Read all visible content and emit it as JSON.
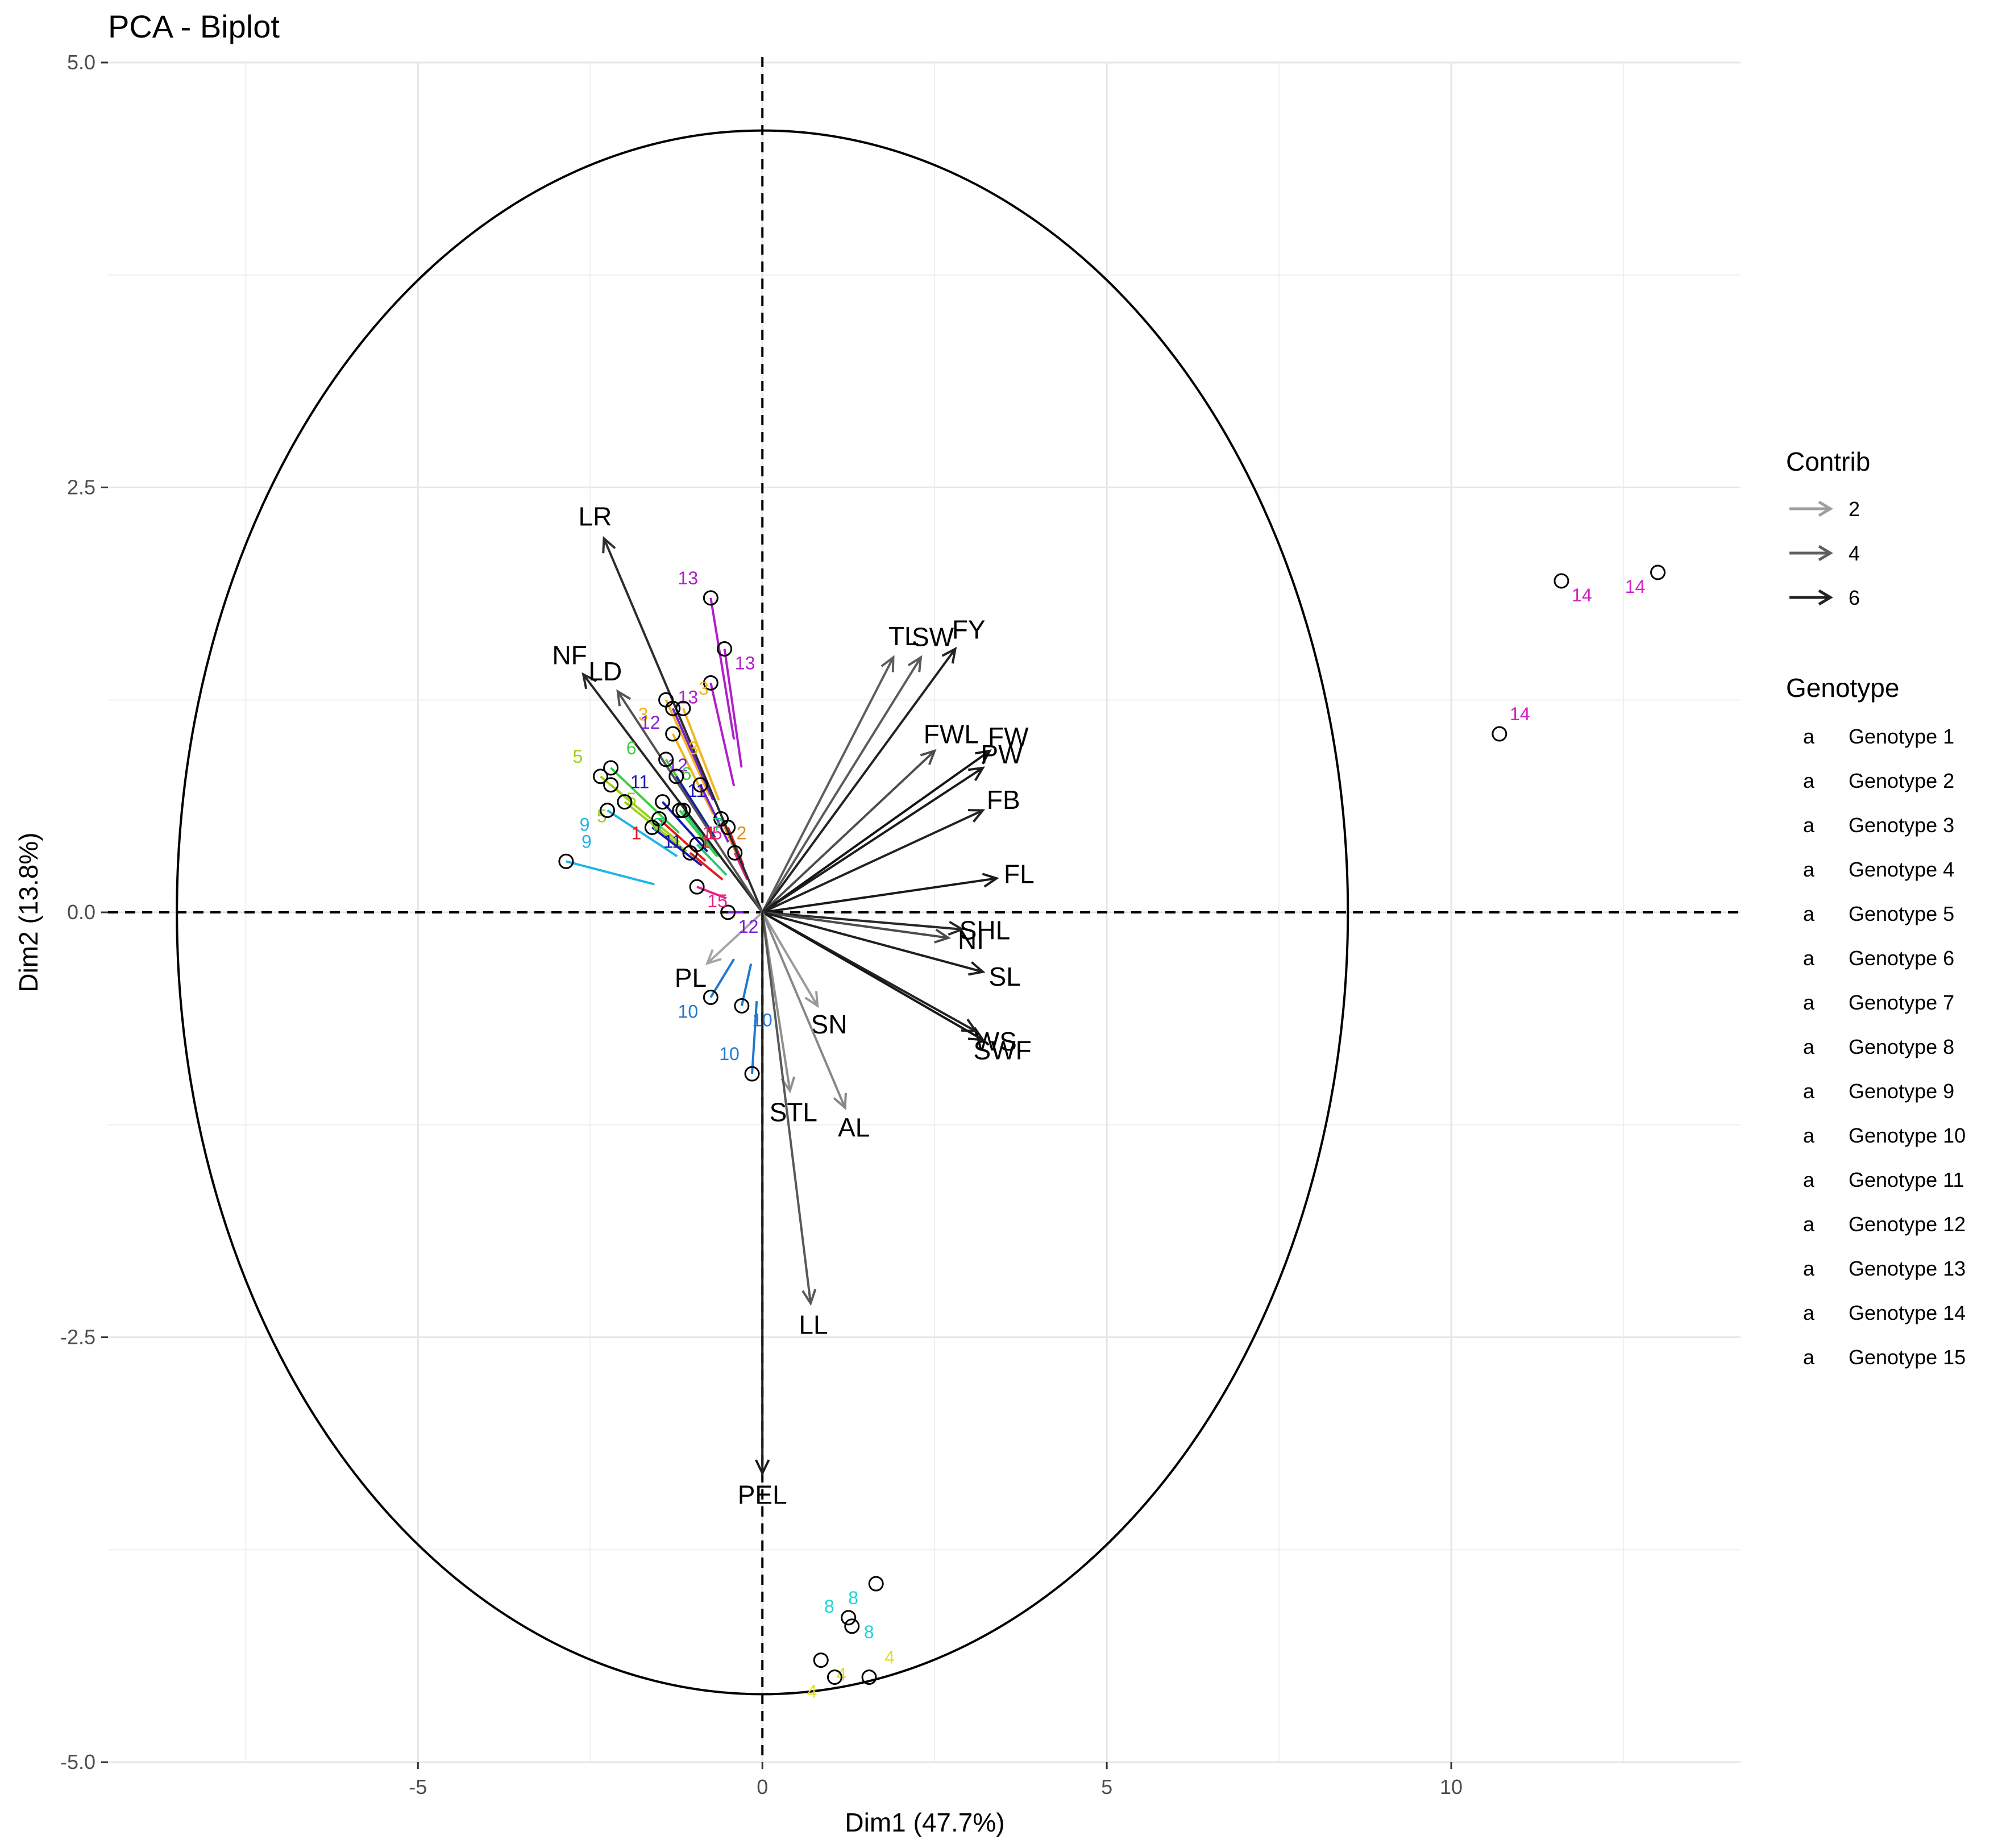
{
  "chart_data": {
    "type": "scatter",
    "subtype": "pca-biplot",
    "title": "PCA - Biplot",
    "xlabel": "Dim1 (47.7%)",
    "ylabel": "Dim2 (13.8%)",
    "xlim": [
      -9.5,
      14.2
    ],
    "ylim": [
      -5.0,
      5.0
    ],
    "x_ticks": [
      -5,
      0,
      5,
      10
    ],
    "x_tick_labels": [
      "-5",
      "0",
      "5",
      "10"
    ],
    "y_ticks": [
      -5.0,
      -2.5,
      0.0,
      2.5,
      5.0
    ],
    "y_tick_labels": [
      "-5.0",
      "-2.5",
      "0.0",
      "2.5",
      "5.0"
    ],
    "grid": true,
    "circle": {
      "cx": 0,
      "rx": 8.5,
      "ry": 4.6
    },
    "contrib_legend": {
      "title": "Contrib",
      "entries": [
        {
          "label": "2",
          "color": "#9e9e9e"
        },
        {
          "label": "4",
          "color": "#5f5f5f"
        },
        {
          "label": "6",
          "color": "#222222"
        }
      ]
    },
    "genotype_legend": {
      "title": "Genotype",
      "key_glyph": "a",
      "entries": [
        {
          "label": "Genotype 1",
          "color": "#e41a1c"
        },
        {
          "label": "Genotype 2",
          "color": "#e08a1e"
        },
        {
          "label": "Genotype 3",
          "color": "#f2b51c"
        },
        {
          "label": "Genotype 4",
          "color": "#e0e020"
        },
        {
          "label": "Genotype 5",
          "color": "#9ed11b"
        },
        {
          "label": "Genotype 6",
          "color": "#3ccf3c"
        },
        {
          "label": "Genotype 7",
          "color": "#20c97a"
        },
        {
          "label": "Genotype 8",
          "color": "#1ed4d4"
        },
        {
          "label": "Genotype 9",
          "color": "#1fb4e6"
        },
        {
          "label": "Genotype 10",
          "color": "#1f78d4"
        },
        {
          "label": "Genotype 11",
          "color": "#1a1ab0"
        },
        {
          "label": "Genotype 12",
          "color": "#7a1fd4"
        },
        {
          "label": "Genotype 13",
          "color": "#b01fc8"
        },
        {
          "label": "Genotype 14",
          "color": "#d41fc8"
        },
        {
          "label": "Genotype 15",
          "color": "#e8208a"
        }
      ]
    },
    "variables": [
      {
        "name": "LR",
        "x": -2.3,
        "y": 2.2,
        "contrib": 5.6
      },
      {
        "name": "NF",
        "x": -2.6,
        "y": 1.4,
        "contrib": 5.8
      },
      {
        "name": "LD",
        "x": -2.1,
        "y": 1.3,
        "contrib": 4.2
      },
      {
        "name": "TL",
        "x": 1.9,
        "y": 1.5,
        "contrib": 3.8
      },
      {
        "name": "SW",
        "x": 2.3,
        "y": 1.5,
        "contrib": 3.9
      },
      {
        "name": "FY",
        "x": 2.8,
        "y": 1.55,
        "contrib": 6.0
      },
      {
        "name": "FWL",
        "x": 2.5,
        "y": 0.95,
        "contrib": 4.4
      },
      {
        "name": "FW",
        "x": 3.3,
        "y": 0.95,
        "contrib": 6.5
      },
      {
        "name": "PW",
        "x": 3.2,
        "y": 0.85,
        "contrib": 6.2
      },
      {
        "name": "FB",
        "x": 3.2,
        "y": 0.6,
        "contrib": 6.0
      },
      {
        "name": "FL",
        "x": 3.4,
        "y": 0.2,
        "contrib": 6.3
      },
      {
        "name": "SHL",
        "x": 2.9,
        "y": -0.1,
        "contrib": 5.8
      },
      {
        "name": "NI",
        "x": 2.7,
        "y": -0.15,
        "contrib": 4.5
      },
      {
        "name": "SL",
        "x": 3.2,
        "y": -0.35,
        "contrib": 6.1
      },
      {
        "name": "WS",
        "x": 3.1,
        "y": -0.7,
        "contrib": 6.0
      },
      {
        "name": "SWF",
        "x": 3.2,
        "y": -0.75,
        "contrib": 6.4
      },
      {
        "name": "PL",
        "x": -0.8,
        "y": -0.3,
        "contrib": 1.2
      },
      {
        "name": "SN",
        "x": 0.8,
        "y": -0.55,
        "contrib": 1.6
      },
      {
        "name": "STL",
        "x": 0.4,
        "y": -1.05,
        "contrib": 2.0
      },
      {
        "name": "AL",
        "x": 1.2,
        "y": -1.15,
        "contrib": 2.3
      },
      {
        "name": "LL",
        "x": 0.7,
        "y": -2.3,
        "contrib": 4.0
      },
      {
        "name": "PEL",
        "x": 0.0,
        "y": -3.3,
        "contrib": 6.2
      }
    ],
    "individuals": [
      {
        "label": "13",
        "genotype": 13,
        "x": -0.75,
        "y": 1.85
      },
      {
        "label": "13",
        "genotype": 13,
        "x": -0.55,
        "y": 1.55
      },
      {
        "label": "13",
        "genotype": 13,
        "x": -0.75,
        "y": 1.35
      },
      {
        "label": "3",
        "genotype": 3,
        "x": -1.15,
        "y": 1.2
      },
      {
        "label": "3",
        "genotype": 3,
        "x": -1.4,
        "y": 1.25
      },
      {
        "label": "3",
        "genotype": 3,
        "x": -1.3,
        "y": 1.05
      },
      {
        "label": "12",
        "genotype": 12,
        "x": -0.9,
        "y": 0.75
      },
      {
        "label": "12",
        "genotype": 12,
        "x": -0.5,
        "y": 0.0
      },
      {
        "label": "12",
        "genotype": 12,
        "x": -1.3,
        "y": 1.2
      },
      {
        "label": "6",
        "genotype": 6,
        "x": -2.2,
        "y": 0.85
      },
      {
        "label": "6",
        "genotype": 6,
        "x": -1.2,
        "y": 0.6
      },
      {
        "label": "6",
        "genotype": 6,
        "x": -1.4,
        "y": 0.9
      },
      {
        "label": "5",
        "genotype": 5,
        "x": -2.35,
        "y": 0.8
      },
      {
        "label": "5",
        "genotype": 5,
        "x": -2.2,
        "y": 0.75
      },
      {
        "label": "5",
        "genotype": 5,
        "x": -2.0,
        "y": 0.65
      },
      {
        "label": "9",
        "genotype": 9,
        "x": -2.85,
        "y": 0.3
      },
      {
        "label": "9",
        "genotype": 9,
        "x": -2.25,
        "y": 0.6
      },
      {
        "label": "11",
        "genotype": 11,
        "x": -1.6,
        "y": 0.5
      },
      {
        "label": "11",
        "genotype": 11,
        "x": -1.45,
        "y": 0.65
      },
      {
        "label": "11",
        "genotype": 11,
        "x": -1.25,
        "y": 0.8
      },
      {
        "label": "1",
        "genotype": 1,
        "x": -1.5,
        "y": 0.55
      },
      {
        "label": "1",
        "genotype": 1,
        "x": -1.05,
        "y": 0.35
      },
      {
        "label": "1",
        "genotype": 1,
        "x": -0.5,
        "y": 0.5
      },
      {
        "label": "2",
        "genotype": 2,
        "x": -0.6,
        "y": 0.55
      },
      {
        "label": "15",
        "genotype": 15,
        "x": -0.4,
        "y": 0.35
      },
      {
        "label": "15",
        "genotype": 15,
        "x": -0.95,
        "y": 0.15
      },
      {
        "label": "7",
        "genotype": 7,
        "x": -1.15,
        "y": 0.6
      },
      {
        "label": "7",
        "genotype": 7,
        "x": -0.95,
        "y": 0.4
      },
      {
        "label": "10",
        "genotype": 10,
        "x": -0.75,
        "y": -0.5
      },
      {
        "label": "10",
        "genotype": 10,
        "x": -0.3,
        "y": -0.55
      },
      {
        "label": "10",
        "genotype": 10,
        "x": -0.15,
        "y": -0.95
      },
      {
        "label": "14",
        "genotype": 14,
        "x": 11.6,
        "y": 1.95
      },
      {
        "label": "14",
        "genotype": 14,
        "x": 13.0,
        "y": 2.0
      },
      {
        "label": "14",
        "genotype": 14,
        "x": 10.7,
        "y": 1.05
      },
      {
        "label": "8",
        "genotype": 8,
        "x": 1.65,
        "y": -3.95
      },
      {
        "label": "8",
        "genotype": 8,
        "x": 1.25,
        "y": -4.15
      },
      {
        "label": "8",
        "genotype": 8,
        "x": 1.3,
        "y": -4.2
      },
      {
        "label": "4",
        "genotype": 4,
        "x": 0.85,
        "y": -4.4
      },
      {
        "label": "4",
        "genotype": 4,
        "x": 1.05,
        "y": -4.5
      },
      {
        "label": "4",
        "genotype": 4,
        "x": 1.55,
        "y": -4.5
      }
    ],
    "individual_label_offsets_note": "labels are placed next to their points",
    "genotype_vectors_note": "coloured segments join genotype points to origin-side ends"
  }
}
